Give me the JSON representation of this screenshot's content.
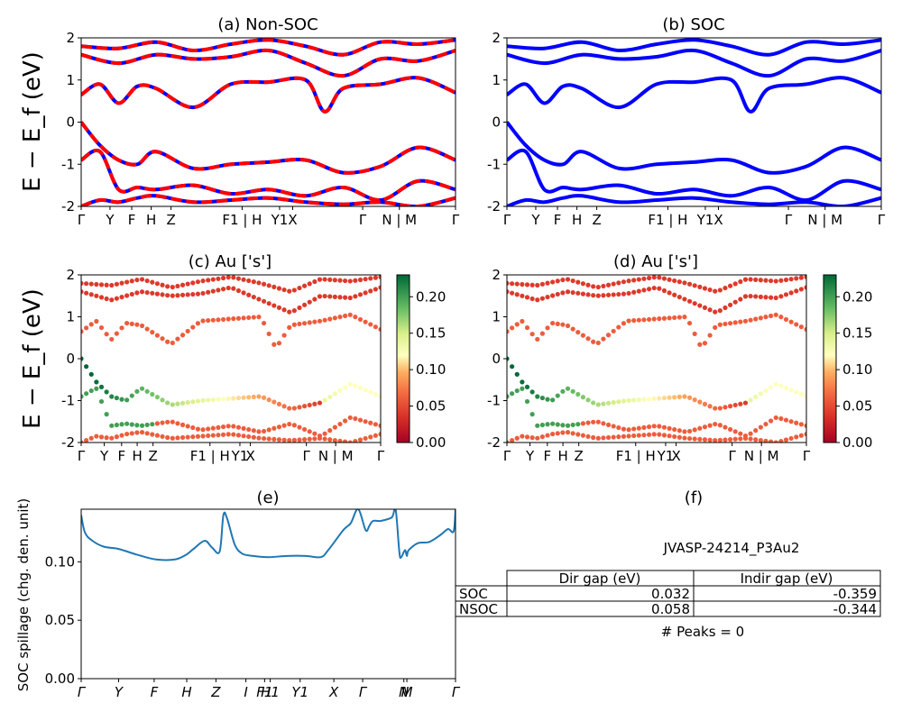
{
  "figure": {
    "ylabel_main": "E − E_f (eV)",
    "panel_a_title": "(a) Non-SOC",
    "panel_b_title": "(b) SOC",
    "panel_c_title": "(c)  Au ['s']",
    "panel_d_title": "(d) Au ['s']",
    "panel_e_title": "(e)",
    "panel_f_title": "(f)",
    "spillage_ylabel": "SOC spillage (chg. den. unit)",
    "table": {
      "title": "JVASP-24214_P3Au2",
      "col_headers": [
        "Dir gap (eV)",
        "Indir gap (eV)"
      ],
      "rows": [
        {
          "label": "SOC",
          "dir": "0.032",
          "indir": "-0.359"
        },
        {
          "label": "NSOC",
          "dir": "0.058",
          "indir": "-0.344"
        }
      ],
      "peaks": "# Peaks = 0"
    },
    "colors": {
      "soc_band": "#0000ff",
      "nsoc_band": "#ff0000",
      "spillage": "#1f77b4"
    }
  },
  "chart_data": [
    {
      "type": "line",
      "title": "(a) Non-SOC",
      "ylabel": "E − E_f (eV)",
      "ylim": [
        -2,
        2
      ],
      "yticks": [
        -2,
        -1,
        0,
        1,
        2
      ],
      "x_ticks": [
        "Γ",
        "Y",
        "F",
        "H",
        "Z",
        "F1 | H",
        "Y1",
        "X",
        "Γ",
        "N | M",
        "Γ"
      ],
      "x_tick_pos": [
        0,
        0.077,
        0.135,
        0.187,
        0.24,
        0.43,
        0.53,
        0.565,
        0.752,
        0.85,
        1.0
      ],
      "series": [
        {
          "name": "",
          "x": [
            0,
            0.1,
            0.2,
            0.3,
            0.4,
            0.5,
            0.6,
            0.7,
            0.8,
            0.9,
            1.0
          ],
          "values": [
            1.8,
            1.75,
            1.9,
            1.7,
            1.85,
            1.95,
            1.8,
            1.6,
            1.9,
            1.85,
            1.95
          ]
        },
        {
          "name": "",
          "x": [
            0,
            0.1,
            0.2,
            0.3,
            0.4,
            0.5,
            0.6,
            0.7,
            0.8,
            0.9,
            1.0
          ],
          "values": [
            1.6,
            1.4,
            1.6,
            1.5,
            1.55,
            1.7,
            1.4,
            1.1,
            1.5,
            1.45,
            1.7
          ]
        },
        {
          "name": "",
          "x": [
            0,
            0.05,
            0.1,
            0.15,
            0.2,
            0.3,
            0.4,
            0.5,
            0.6,
            0.65,
            0.7,
            0.8,
            0.9,
            1.0
          ],
          "values": [
            0.65,
            0.9,
            0.45,
            0.85,
            0.8,
            0.35,
            0.9,
            0.95,
            1.0,
            0.25,
            0.8,
            0.9,
            1.05,
            0.7
          ]
        },
        {
          "name": "",
          "x": [
            0,
            0.05,
            0.1,
            0.15,
            0.2,
            0.3,
            0.4,
            0.5,
            0.6,
            0.7,
            0.8,
            0.9,
            1.0
          ],
          "values": [
            0.0,
            -0.55,
            -0.9,
            -1.0,
            -0.7,
            -1.1,
            -1.0,
            -0.95,
            -0.9,
            -1.2,
            -1.05,
            -0.6,
            -0.9
          ]
        },
        {
          "name": "",
          "x": [
            0,
            0.05,
            0.1,
            0.15,
            0.2,
            0.3,
            0.4,
            0.5,
            0.6,
            0.7,
            0.8,
            0.9,
            1.0
          ],
          "values": [
            -0.9,
            -0.7,
            -1.6,
            -1.55,
            -1.6,
            -1.5,
            -1.7,
            -1.6,
            -1.75,
            -1.55,
            -1.85,
            -1.4,
            -1.6
          ]
        },
        {
          "name": "",
          "x": [
            0,
            0.05,
            0.1,
            0.15,
            0.2,
            0.3,
            0.4,
            0.5,
            0.6,
            0.7,
            0.8,
            0.9,
            1.0
          ],
          "values": [
            -2.0,
            -1.85,
            -1.9,
            -1.8,
            -1.75,
            -1.9,
            -1.85,
            -1.8,
            -1.9,
            -1.95,
            -1.9,
            -2.0,
            -1.8
          ]
        }
      ]
    },
    {
      "type": "line",
      "title": "(b) SOC",
      "ylim": [
        -2,
        2
      ],
      "yticks": [
        -2,
        -1,
        0,
        1,
        2
      ],
      "x_ticks": [
        "Γ",
        "Y",
        "F",
        "H",
        "Z",
        "F1 | H",
        "Y1",
        "X",
        "Γ",
        "N | M",
        "Γ"
      ],
      "x_tick_pos": [
        0,
        0.077,
        0.135,
        0.187,
        0.24,
        0.43,
        0.53,
        0.565,
        0.752,
        0.85,
        1.0
      ],
      "series": [
        {
          "name": "",
          "x": [
            0,
            0.1,
            0.2,
            0.3,
            0.4,
            0.5,
            0.6,
            0.7,
            0.8,
            0.9,
            1.0
          ],
          "values": [
            1.8,
            1.75,
            1.9,
            1.7,
            1.85,
            1.95,
            1.8,
            1.6,
            1.9,
            1.85,
            1.95
          ]
        },
        {
          "name": "",
          "x": [
            0,
            0.1,
            0.2,
            0.3,
            0.4,
            0.5,
            0.6,
            0.7,
            0.8,
            0.9,
            1.0
          ],
          "values": [
            1.6,
            1.4,
            1.6,
            1.5,
            1.55,
            1.7,
            1.4,
            1.1,
            1.5,
            1.45,
            1.7
          ]
        },
        {
          "name": "",
          "x": [
            0,
            0.05,
            0.1,
            0.15,
            0.2,
            0.3,
            0.4,
            0.5,
            0.6,
            0.65,
            0.7,
            0.8,
            0.9,
            1.0
          ],
          "values": [
            0.65,
            0.9,
            0.45,
            0.85,
            0.8,
            0.35,
            0.9,
            0.95,
            1.0,
            0.25,
            0.8,
            0.9,
            1.05,
            0.7
          ]
        },
        {
          "name": "",
          "x": [
            0,
            0.05,
            0.1,
            0.15,
            0.2,
            0.3,
            0.4,
            0.5,
            0.6,
            0.7,
            0.8,
            0.9,
            1.0
          ],
          "values": [
            0.0,
            -0.55,
            -0.9,
            -1.0,
            -0.7,
            -1.1,
            -1.0,
            -0.95,
            -0.9,
            -1.2,
            -1.05,
            -0.6,
            -0.9
          ]
        },
        {
          "name": "",
          "x": [
            0,
            0.05,
            0.1,
            0.15,
            0.2,
            0.3,
            0.4,
            0.5,
            0.6,
            0.7,
            0.8,
            0.9,
            1.0
          ],
          "values": [
            -0.9,
            -0.7,
            -1.6,
            -1.55,
            -1.6,
            -1.5,
            -1.7,
            -1.6,
            -1.75,
            -1.55,
            -1.85,
            -1.4,
            -1.6
          ]
        },
        {
          "name": "",
          "x": [
            0,
            0.05,
            0.1,
            0.15,
            0.2,
            0.3,
            0.4,
            0.5,
            0.6,
            0.7,
            0.8,
            0.9,
            1.0
          ],
          "values": [
            -2.0,
            -1.85,
            -1.9,
            -1.8,
            -1.75,
            -1.9,
            -1.85,
            -1.8,
            -1.9,
            -1.95,
            -1.9,
            -2.0,
            -1.8
          ]
        }
      ]
    },
    {
      "type": "scatter",
      "title": "(c)  Au ['s']",
      "ylabel": "E − E_f (eV)",
      "ylim": [
        -2,
        2
      ],
      "yticks": [
        -2,
        -1,
        0,
        1,
        2
      ],
      "colorbar_ticks": [
        "0.00",
        "0.05",
        "0.10",
        "0.15",
        "0.20"
      ],
      "colorbar_range": [
        0,
        0.23
      ],
      "x_ticks": [
        "Γ",
        "Y",
        "F",
        "H",
        "Z",
        "F1 | H",
        "Y1",
        "X",
        "Γ",
        "N | M",
        "Γ"
      ],
      "x_tick_pos": [
        0,
        0.077,
        0.135,
        0.187,
        0.24,
        0.43,
        0.53,
        0.565,
        0.752,
        0.85,
        1.0
      ]
    },
    {
      "type": "scatter",
      "title": "(d) Au ['s']",
      "ylim": [
        -2,
        2
      ],
      "yticks": [
        -2,
        -1,
        0,
        1,
        2
      ],
      "colorbar_ticks": [
        "0.00",
        "0.05",
        "0.10",
        "0.15",
        "0.20"
      ],
      "colorbar_range": [
        0,
        0.23
      ],
      "x_ticks": [
        "Γ",
        "Y",
        "F",
        "H",
        "Z",
        "F1 | H",
        "Y1",
        "X",
        "Γ",
        "N | M",
        "Γ"
      ],
      "x_tick_pos": [
        0,
        0.077,
        0.135,
        0.187,
        0.24,
        0.43,
        0.53,
        0.565,
        0.752,
        0.85,
        1.0
      ]
    },
    {
      "type": "line",
      "title": "(e)",
      "ylabel": "SOC spillage (chg. den. unit)",
      "ylim": [
        0,
        0.145
      ],
      "yticks": [
        0.0,
        0.05,
        0.1
      ],
      "x_ticks": [
        "Γ",
        "Y",
        "F",
        "H",
        "Z",
        "I",
        "F1",
        "H1",
        "Y1",
        "X",
        "Γ",
        "N",
        "M",
        "Γ"
      ],
      "x_tick_pos": [
        0,
        0.1,
        0.195,
        0.282,
        0.36,
        0.44,
        0.49,
        0.505,
        0.585,
        0.675,
        0.752,
        0.862,
        0.87,
        1.0
      ],
      "series": [
        {
          "name": "",
          "x": [
            0,
            0.01,
            0.03,
            0.06,
            0.1,
            0.15,
            0.2,
            0.25,
            0.28,
            0.3,
            0.33,
            0.35,
            0.37,
            0.38,
            0.39,
            0.41,
            0.43,
            0.46,
            0.5,
            0.55,
            0.6,
            0.64,
            0.66,
            0.7,
            0.72,
            0.74,
            0.76,
            0.77,
            0.78,
            0.8,
            0.83,
            0.84,
            0.85,
            0.855,
            0.865,
            0.87,
            0.875,
            0.9,
            0.93,
            0.96,
            0.98,
            0.995,
            1.0
          ],
          "values": [
            0.14,
            0.125,
            0.118,
            0.113,
            0.111,
            0.106,
            0.102,
            0.102,
            0.106,
            0.111,
            0.118,
            0.112,
            0.109,
            0.14,
            0.137,
            0.115,
            0.107,
            0.105,
            0.104,
            0.105,
            0.105,
            0.104,
            0.11,
            0.127,
            0.133,
            0.145,
            0.127,
            0.131,
            0.135,
            0.135,
            0.138,
            0.145,
            0.108,
            0.104,
            0.11,
            0.105,
            0.11,
            0.116,
            0.117,
            0.123,
            0.128,
            0.126,
            0.145
          ]
        }
      ]
    }
  ]
}
